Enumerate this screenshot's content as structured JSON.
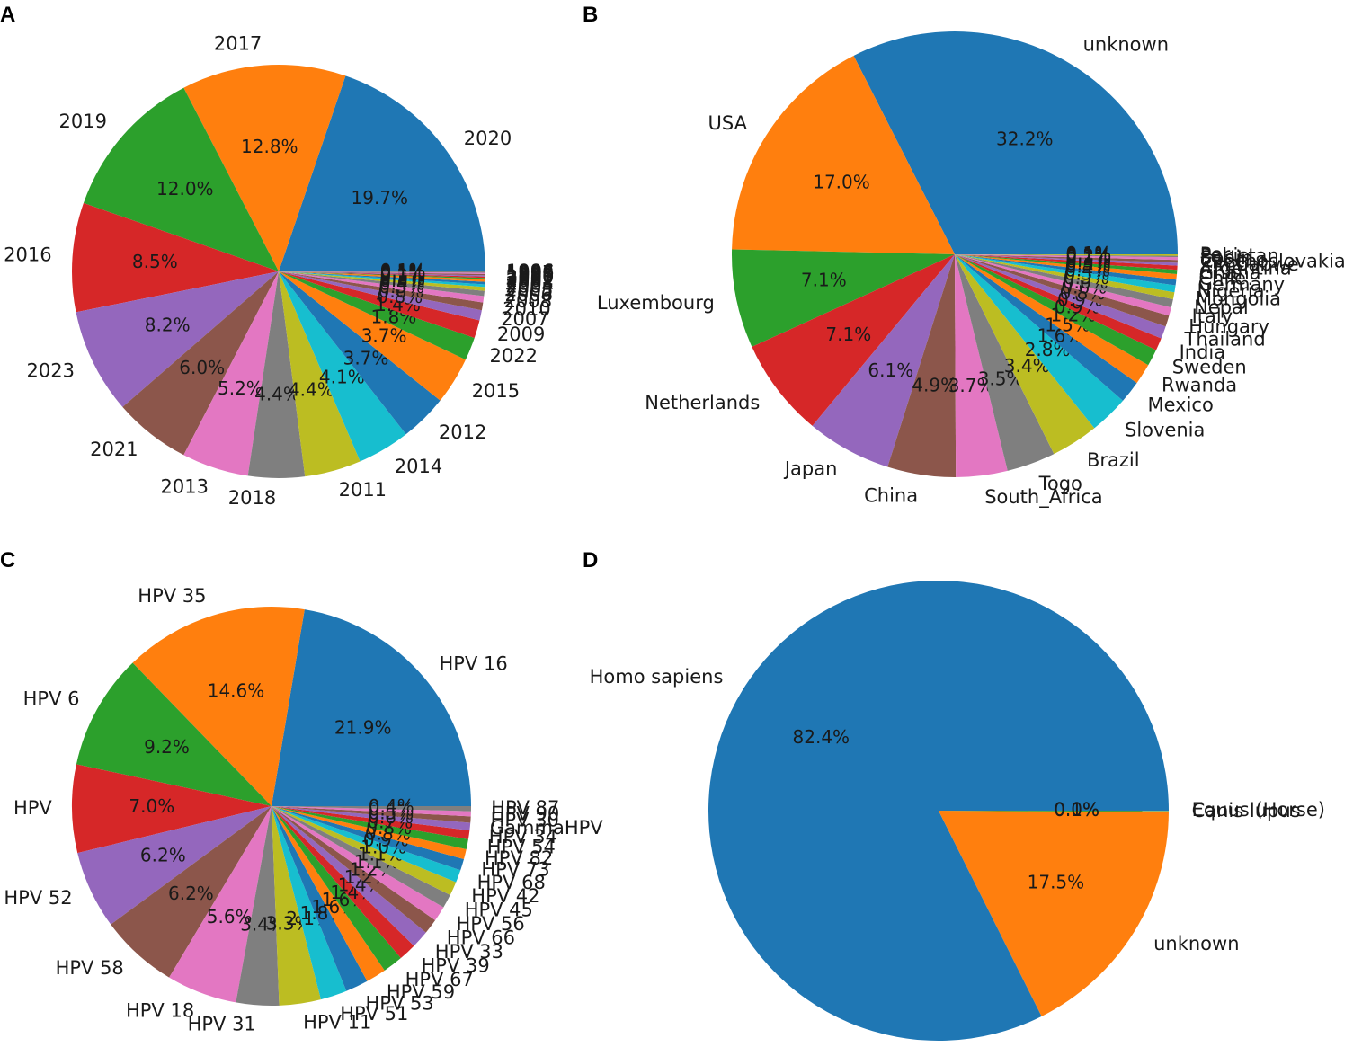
{
  "figure": {
    "panel_letters": [
      "A",
      "B",
      "C",
      "D"
    ]
  },
  "colors": [
    "#1f77b4",
    "#ff7f0e",
    "#2ca02c",
    "#d62728",
    "#9467bd",
    "#8c564b",
    "#e377c2",
    "#7f7f7f",
    "#bcbd22",
    "#17becf"
  ],
  "chart_data": [
    {
      "type": "pie",
      "panel": "A",
      "title": "",
      "categories": [
        "2020",
        "2017",
        "2019",
        "2016",
        "2023",
        "2021",
        "2013",
        "2018",
        "2011",
        "2014",
        "2012",
        "2015",
        "2022",
        "2009",
        "2007",
        "2010",
        "2008",
        "2006",
        "2005",
        "2004",
        "2003",
        "2002",
        "2001",
        "2000",
        "1999",
        "1998",
        "1997",
        "1996"
      ],
      "values": [
        19.7,
        12.8,
        12.0,
        8.5,
        8.2,
        6.0,
        5.2,
        4.4,
        4.4,
        4.1,
        3.7,
        3.7,
        1.8,
        1.4,
        0.8,
        0.6,
        0.5,
        0.4,
        0.3,
        0.2,
        0.2,
        0.2,
        0.1,
        0.1,
        0.1,
        0.1,
        0.1,
        0.1
      ],
      "pct_labels": [
        "19.7%",
        "12.8%",
        "12.0%",
        "8.5%",
        "8.2%",
        "6.0%",
        "5.2%",
        "4.4%",
        "4.4%",
        "4.1%",
        "3.7%",
        "3.7%",
        "1.8%",
        "1.4%",
        "0.8%",
        "0.6%",
        "0.5%",
        "0.4%",
        "0.3%",
        "0.2%",
        "0.2%",
        "0.2%",
        "0.1%",
        "0.1%",
        "0.1%",
        "0.1%",
        "0.1%",
        "0.1%"
      ]
    },
    {
      "type": "pie",
      "panel": "B",
      "title": "",
      "categories": [
        "unknown",
        "USA",
        "Luxembourg",
        "Netherlands",
        "Japan",
        "China",
        "South_Africa",
        "Togo",
        "Brazil",
        "Slovenia",
        "Mexico",
        "Rwanda",
        "Sweden",
        "India",
        "Thailand",
        "Hungary",
        "Italy",
        "Nepal",
        "Mongolia",
        "Nigeria",
        "Germany",
        "Chile",
        "Ghana",
        "Argentina",
        "Zimbabwe",
        "Czechoslovakia",
        "Spain",
        "Pakistan",
        "Peru"
      ],
      "values": [
        32.2,
        17.0,
        7.1,
        7.1,
        6.1,
        4.9,
        3.7,
        3.5,
        3.4,
        2.8,
        1.6,
        1.5,
        1.2,
        0.9,
        0.9,
        0.8,
        0.6,
        0.6,
        0.5,
        0.5,
        0.4,
        0.4,
        0.3,
        0.3,
        0.2,
        0.2,
        0.2,
        0.1,
        0.1
      ],
      "pct_labels": [
        "32.2%",
        "17.0%",
        "7.1%",
        "7.1%",
        "6.1%",
        "4.9%",
        "3.7%",
        "3.5%",
        "3.4%",
        "2.8%",
        "1.6%",
        "1.5%",
        "1.2%",
        "0.9%",
        "0.9%",
        "0.8%",
        "0.6%",
        "0.6%",
        "0.5%",
        "0.5%",
        "0.4%",
        "0.4%",
        "0.3%",
        "0.3%",
        "0.2%",
        "0.2%",
        "0.2%",
        "0.1%",
        "0.1%"
      ]
    },
    {
      "type": "pie",
      "panel": "C",
      "title": "",
      "categories": [
        "HPV 16",
        "HPV 35",
        "HPV 6",
        "HPV",
        "HPV 52",
        "HPV 58",
        "HPV 18",
        "HPV 31",
        "HPV 11",
        "HPV 51",
        "HPV 53",
        "HPV 59",
        "HPV 67",
        "HPV 39",
        "HPV 33",
        "HPV 66",
        "HPV 56",
        "HPV 45",
        "HPV 42",
        "HPV 68",
        "HPV 73",
        "HPV 82",
        "HPV 54",
        "HPV 34",
        "GammaHPV",
        "HPV 30",
        "HPV 90",
        "HPV 87"
      ],
      "values": [
        21.9,
        14.6,
        9.2,
        7.0,
        6.2,
        6.2,
        5.6,
        3.4,
        3.3,
        2.1,
        1.8,
        1.6,
        1.6,
        1.4,
        1.4,
        1.2,
        1.2,
        1.1,
        1.1,
        1.0,
        0.9,
        0.8,
        0.8,
        0.7,
        0.6,
        0.5,
        0.4,
        0.4
      ],
      "pct_labels": [
        "21.9%",
        "14.6%",
        "9.2%",
        "7.0%",
        "6.2%",
        "6.2%",
        "5.6%",
        "3.4%",
        "3.3%",
        "2.1%",
        "1.8%",
        "1.6%",
        "1.6%",
        "1.4%",
        "1.4%",
        "1.2%",
        "1.2%",
        "1.1%",
        "1.1%",
        "1.0%",
        "0.9%",
        "0.8%",
        "0.8%",
        "0.7%",
        "0.6%",
        "0.5%",
        "0.4%",
        "0.4%"
      ]
    },
    {
      "type": "pie",
      "panel": "D",
      "title": "",
      "categories": [
        "Homo sapiens",
        "unknown",
        "Canis lupus",
        "Equus (Horse)"
      ],
      "values": [
        82.4,
        17.5,
        0.1,
        0.01
      ],
      "pct_labels": [
        "82.4%",
        "17.5%",
        "0.1%",
        "0.0%"
      ]
    }
  ]
}
